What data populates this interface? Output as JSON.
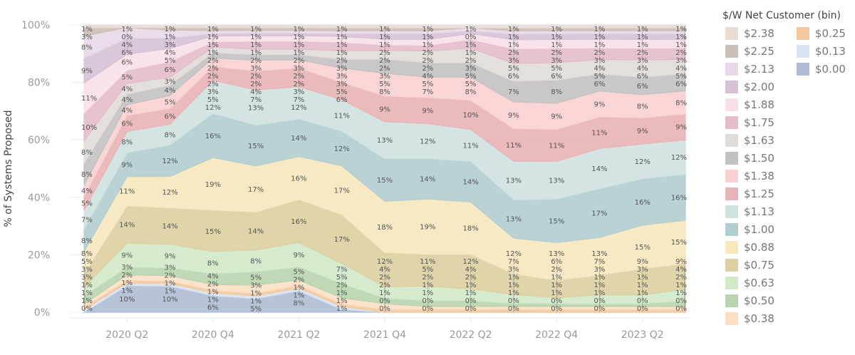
{
  "chart_data": {
    "type": "area",
    "stacked": true,
    "normalized": true,
    "title": "",
    "xlabel": "",
    "ylabel": "% of Systems Proposed",
    "ylim": [
      0,
      100
    ],
    "yticks": [
      "0%",
      "20%",
      "40%",
      "60%",
      "80%",
      "100%"
    ],
    "x": [
      "2020 Q1",
      "2020 Q2",
      "2020 Q3",
      "2020 Q4",
      "2021 Q1",
      "2021 Q2",
      "2021 Q3",
      "2021 Q4",
      "2022 Q1",
      "2022 Q2",
      "2022 Q3",
      "2022 Q4",
      "2023 Q1",
      "2023 Q2",
      "2023 Q3"
    ],
    "xticks": [
      "2020 Q2",
      "2020 Q4",
      "2021 Q2",
      "2021 Q4",
      "2022 Q2",
      "2022 Q4",
      "2023 Q2"
    ],
    "legend_title": "$/W Net Customer (bin)",
    "legend_position": "right",
    "grid": true,
    "series": [
      {
        "name": "$0.00",
        "color": "#afbcd3",
        "values": [
          0,
          10,
          10,
          6,
          5,
          8,
          1,
          0,
          0,
          0,
          0,
          0,
          0,
          0,
          0
        ]
      },
      {
        "name": "$0.13",
        "color": "#d6e3f3",
        "values": [
          1,
          1,
          1,
          1,
          1,
          1,
          1,
          0,
          0,
          0,
          0,
          0,
          0,
          0,
          0
        ]
      },
      {
        "name": "$0.25",
        "color": "#f3c99d",
        "values": [
          1,
          1,
          1,
          1,
          1,
          1,
          1,
          1,
          1,
          1,
          1,
          1,
          1,
          1,
          1
        ]
      },
      {
        "name": "$0.38",
        "color": "#fbdfc4",
        "values": [
          1,
          2,
          2,
          2,
          3,
          2,
          2,
          2,
          1,
          1,
          1,
          1,
          1,
          1,
          1
        ]
      },
      {
        "name": "$0.50",
        "color": "#b8d4ae",
        "values": [
          3,
          3,
          3,
          4,
          5,
          5,
          5,
          2,
          2,
          2,
          1,
          1,
          1,
          1,
          2
        ]
      },
      {
        "name": "$0.63",
        "color": "#d1e9c9",
        "values": [
          3,
          9,
          9,
          8,
          8,
          9,
          7,
          4,
          5,
          4,
          3,
          2,
          3,
          3,
          4
        ]
      },
      {
        "name": "$0.75",
        "color": "#dccfa1",
        "values": [
          5,
          14,
          14,
          15,
          14,
          16,
          17,
          12,
          11,
          12,
          7,
          6,
          7,
          9,
          9
        ]
      },
      {
        "name": "$0.88",
        "color": "#f6e7bc",
        "values": [
          8,
          11,
          12,
          19,
          17,
          16,
          17,
          18,
          19,
          18,
          12,
          13,
          13,
          15,
          15
        ]
      },
      {
        "name": "$1.00",
        "color": "#b2cdcf",
        "values": [
          8,
          9,
          12,
          16,
          15,
          14,
          12,
          15,
          14,
          14,
          13,
          15,
          17,
          16,
          16
        ]
      },
      {
        "name": "$1.13",
        "color": "#cfe1df",
        "values": [
          7,
          8,
          8,
          12,
          13,
          12,
          11,
          13,
          12,
          11,
          13,
          13,
          14,
          12,
          12
        ]
      },
      {
        "name": "$1.25",
        "color": "#e8b3b6",
        "values": [
          5,
          6,
          6,
          5,
          7,
          7,
          6,
          9,
          9,
          10,
          11,
          11,
          11,
          9,
          9
        ]
      },
      {
        "name": "$1.38",
        "color": "#f8d0d0",
        "values": [
          4,
          4,
          5,
          3,
          4,
          3,
          5,
          8,
          7,
          8,
          9,
          9,
          9,
          8,
          8
        ]
      },
      {
        "name": "$1.50",
        "color": "#c3c1c1",
        "values": [
          8,
          4,
          4,
          2,
          2,
          2,
          3,
          5,
          5,
          5,
          7,
          8,
          6,
          6,
          6
        ]
      },
      {
        "name": "$1.63",
        "color": "#dfdbd9",
        "values": [
          8,
          4,
          3,
          2,
          2,
          2,
          3,
          3,
          4,
          5,
          6,
          6,
          5,
          6,
          5
        ]
      },
      {
        "name": "$1.75",
        "color": "#e3bcca",
        "values": [
          10,
          5,
          6,
          2,
          3,
          3,
          3,
          2,
          2,
          3,
          5,
          5,
          4,
          4,
          4
        ]
      },
      {
        "name": "$1.88",
        "color": "#f8e0e8",
        "values": [
          11,
          6,
          5,
          2,
          2,
          2,
          2,
          2,
          2,
          2,
          3,
          3,
          3,
          3,
          3
        ]
      },
      {
        "name": "$2.00",
        "color": "#d6c1d6",
        "values": [
          9,
          6,
          4,
          1,
          1,
          1,
          1,
          2,
          2,
          1,
          2,
          2,
          2,
          2,
          2
        ]
      },
      {
        "name": "$2.13",
        "color": "#e8d8e6",
        "values": [
          8,
          4,
          3,
          1,
          1,
          1,
          1,
          1,
          1,
          1,
          1,
          1,
          1,
          1,
          1
        ]
      },
      {
        "name": "$2.25",
        "color": "#ccbfb6",
        "values": [
          3,
          0,
          1,
          1,
          1,
          1,
          1,
          1,
          1,
          0,
          1,
          1,
          1,
          1,
          1
        ]
      },
      {
        "name": "$2.38",
        "color": "#e7ddd7",
        "values": [
          1,
          1,
          1,
          1,
          1,
          1,
          1,
          1,
          1,
          1,
          1,
          1,
          1,
          1,
          1
        ]
      }
    ]
  },
  "legend": {
    "title": "$/W Net Customer (bin)",
    "col1": [
      "$2.38",
      "$2.25",
      "$2.13",
      "$2.00",
      "$1.88",
      "$1.75",
      "$1.63",
      "$1.50",
      "$1.38",
      "$1.25",
      "$1.13",
      "$1.00",
      "$0.88",
      "$0.75",
      "$0.63",
      "$0.50",
      "$0.38"
    ],
    "col2": [
      "$0.25",
      "$0.13",
      "$0.00"
    ]
  }
}
